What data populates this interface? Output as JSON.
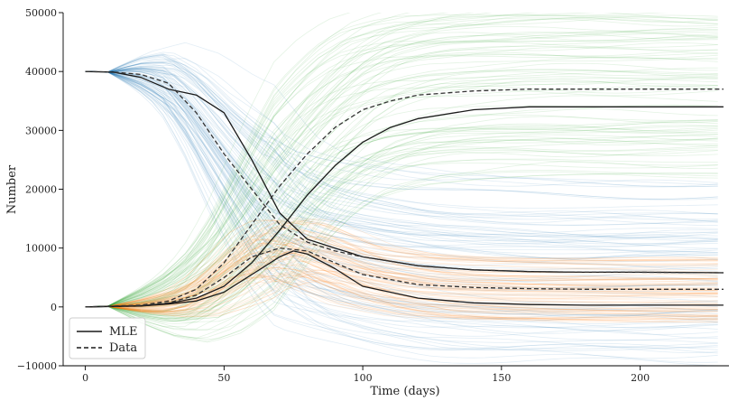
{
  "chart_data": {
    "type": "line",
    "title": "",
    "xlabel": "Time (days)",
    "ylabel": "Number",
    "xlim": [
      -8,
      232
    ],
    "ylim": [
      -10000,
      50000
    ],
    "xticks": [
      0,
      50,
      100,
      150,
      200
    ],
    "yticks": [
      -10000,
      0,
      10000,
      20000,
      30000,
      40000,
      50000
    ],
    "xtick_labels": [
      "0",
      "50",
      "100",
      "150",
      "200"
    ],
    "ytick_labels": [
      "−10000",
      "0",
      "10000",
      "20000",
      "30000",
      "40000",
      "50000"
    ],
    "grid": false,
    "legend_position": "bottom-left",
    "legend": [
      {
        "label": "MLE",
        "style": "solid"
      },
      {
        "label": "Data",
        "style": "dashed"
      }
    ],
    "ensemble_colors": {
      "blue": "#1f77b4",
      "orange": "#ff7f0e",
      "green": "#2ca02c"
    },
    "series": [
      {
        "group": "MLE",
        "style": "solid",
        "color": "#1a1a1a",
        "x": [
          0,
          10,
          20,
          30,
          40,
          50,
          60,
          70,
          80,
          90,
          100,
          120,
          140,
          160,
          180,
          200,
          230
        ],
        "y": [
          40000,
          39900,
          39000,
          37000,
          36000,
          33000,
          25000,
          16000,
          11500,
          10000,
          8500,
          7000,
          6300,
          6000,
          5900,
          5900,
          5800
        ]
      },
      {
        "group": "MLE",
        "style": "solid",
        "color": "#1a1a1a",
        "x": [
          0,
          20,
          30,
          40,
          50,
          60,
          70,
          80,
          90,
          100,
          110,
          120,
          140,
          160,
          180,
          200,
          230
        ],
        "y": [
          0,
          200,
          600,
          1500,
          3500,
          7500,
          13000,
          19000,
          24000,
          28000,
          30500,
          32000,
          33500,
          34000,
          34000,
          34000,
          34000
        ]
      },
      {
        "group": "MLE",
        "style": "solid",
        "color": "#1a1a1a",
        "x": [
          0,
          20,
          30,
          40,
          50,
          60,
          70,
          75,
          80,
          90,
          100,
          120,
          140,
          160,
          180,
          200,
          230
        ],
        "y": [
          0,
          150,
          500,
          1000,
          2500,
          5500,
          8500,
          9500,
          9000,
          6500,
          3500,
          1500,
          700,
          400,
          300,
          300,
          300
        ]
      },
      {
        "group": "Data",
        "style": "dashed",
        "color": "#333333",
        "x": [
          0,
          10,
          20,
          30,
          40,
          50,
          60,
          70,
          80,
          90,
          100,
          120,
          140,
          160,
          180,
          200,
          230
        ],
        "y": [
          40000,
          39900,
          39500,
          38000,
          33000,
          26000,
          20000,
          14000,
          11000,
          9500,
          8500,
          7000,
          6300,
          6000,
          5900,
          5900,
          5800
        ]
      },
      {
        "group": "Data",
        "style": "dashed",
        "color": "#333333",
        "x": [
          0,
          20,
          30,
          40,
          50,
          60,
          70,
          80,
          90,
          100,
          110,
          120,
          140,
          160,
          180,
          200,
          230
        ],
        "y": [
          0,
          300,
          1000,
          3000,
          7500,
          14000,
          20500,
          26000,
          30500,
          33500,
          35000,
          36000,
          36700,
          37000,
          37000,
          37000,
          37000
        ]
      },
      {
        "group": "Data",
        "style": "dashed",
        "color": "#333333",
        "x": [
          0,
          20,
          30,
          40,
          50,
          60,
          70,
          80,
          90,
          100,
          120,
          140,
          160,
          180,
          200,
          230
        ],
        "y": [
          0,
          200,
          700,
          2000,
          5000,
          8500,
          10000,
          9500,
          7500,
          5500,
          3800,
          3300,
          3100,
          3000,
          3000,
          3000
        ]
      }
    ]
  }
}
